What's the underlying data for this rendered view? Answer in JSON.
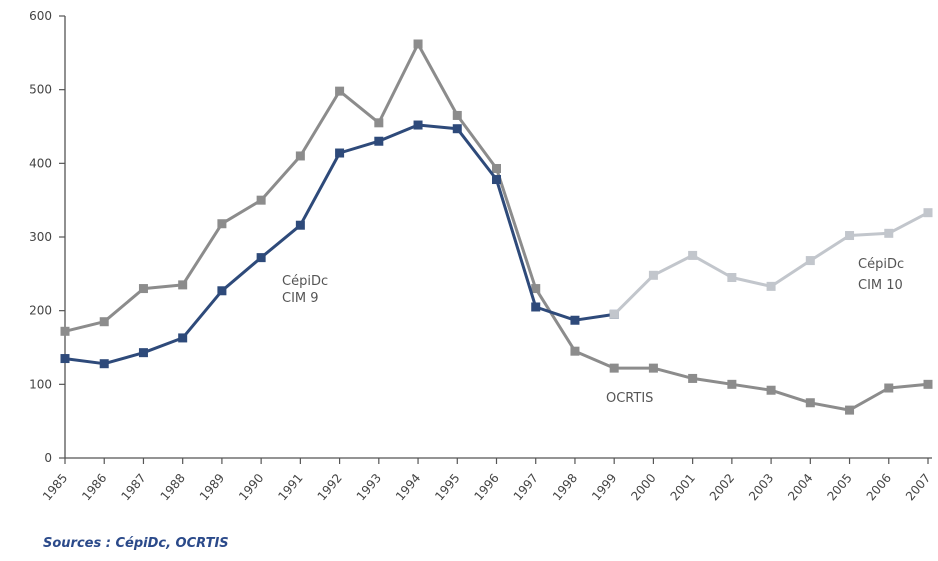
{
  "chart_data": {
    "type": "line",
    "title": "",
    "xlabel": "",
    "ylabel": "",
    "categories": [
      "1985",
      "1986",
      "1987",
      "1988",
      "1989",
      "1990",
      "1991",
      "1992",
      "1993",
      "1994",
      "1995",
      "1996",
      "1997",
      "1998",
      "1999",
      "2000",
      "2001",
      "2002",
      "2003",
      "2004",
      "2005",
      "2006",
      "2007"
    ],
    "ylim": [
      0,
      600
    ],
    "yticks": [
      0,
      100,
      200,
      300,
      400,
      500,
      600
    ],
    "grid": false,
    "series": [
      {
        "key": "ocrtis",
        "values": [
          172,
          185,
          230,
          235,
          318,
          350,
          410,
          498,
          455,
          562,
          465,
          393,
          230,
          145,
          122,
          122,
          108,
          100,
          92,
          75,
          65,
          95,
          100
        ],
        "color": "#8c8c8c"
      },
      {
        "key": "cim9",
        "values": [
          135,
          128,
          143,
          163,
          227,
          272,
          316,
          414,
          430,
          452,
          447,
          378,
          205,
          187,
          195,
          null,
          null,
          null,
          null,
          null,
          null,
          null,
          null
        ],
        "color": "#2e4a7a"
      },
      {
        "key": "cim10",
        "values": [
          null,
          null,
          null,
          null,
          null,
          null,
          null,
          null,
          null,
          null,
          null,
          null,
          null,
          null,
          195,
          248,
          275,
          245,
          233,
          268,
          302,
          305,
          333
        ],
        "color": "#c2c6cc"
      }
    ],
    "annotations": {
      "cim9": [
        "CépiDc",
        "CIM 9"
      ],
      "cim10": [
        "CépiDc",
        "CIM 10"
      ],
      "ocrtis": [
        "OCRTIS"
      ]
    }
  },
  "source": "Sources : CépiDc, OCRTIS"
}
